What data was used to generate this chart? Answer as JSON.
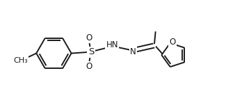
{
  "bg_color": "#ffffff",
  "line_color": "#1a1a1a",
  "line_width": 1.4,
  "font_size": 8.5,
  "fig_width": 3.48,
  "fig_height": 1.48,
  "dpi": 100,
  "xlim": [
    0,
    10
  ],
  "ylim": [
    0,
    4.25
  ]
}
